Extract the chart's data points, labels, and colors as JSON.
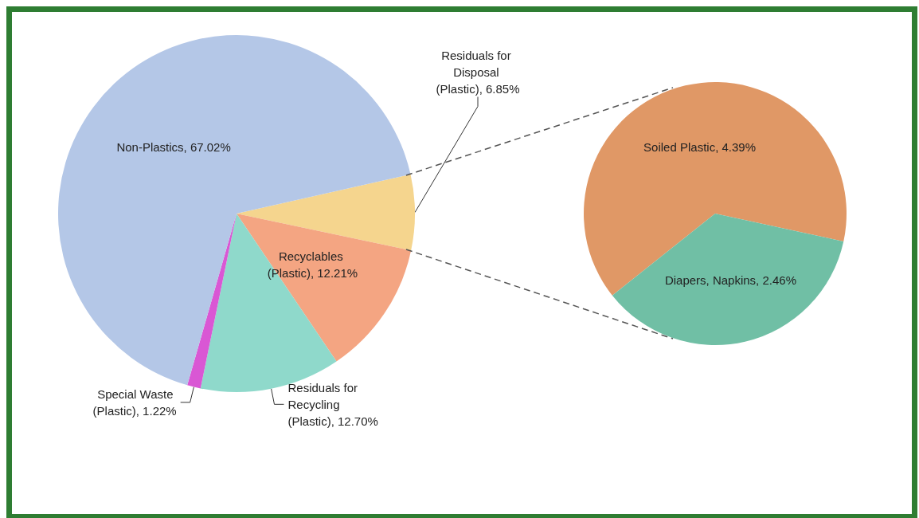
{
  "chart_data": [
    {
      "type": "pie",
      "categories": [
        "Residuals for Disposal (Plastic)",
        "Recyclables (Plastic)",
        "Residuals for Recycling (Plastic)",
        "Special Waste (Plastic)",
        "Non-Plastics"
      ],
      "values": [
        6.85,
        12.21,
        12.7,
        1.22,
        67.02
      ],
      "value_labels": [
        "6.85%",
        "12.21%",
        "12.70%",
        "1.22%",
        "67.02%"
      ],
      "colors": [
        "#f5d58e",
        "#f4a582",
        "#8fd9cb",
        "#d957d4",
        "#b4c7e7"
      ],
      "legend": false
    },
    {
      "type": "pie",
      "categories": [
        "Soiled Plastic",
        "Diapers, Napkins"
      ],
      "values": [
        4.39,
        2.46
      ],
      "value_labels": [
        "4.39%",
        "2.46%"
      ],
      "colors": [
        "#e09866",
        "#70bfa5"
      ],
      "legend": false
    }
  ]
}
